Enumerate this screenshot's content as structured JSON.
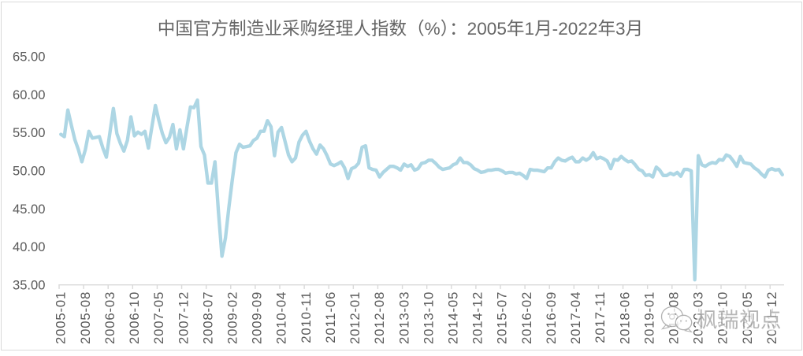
{
  "title": "中国官方制造业采购经理人指数（%）：2005年1月-2022年3月",
  "watermark": {
    "text": "枫瑞视点",
    "icon": "wechat-logo-icon"
  },
  "colors": {
    "line": "#ADD6E4",
    "axis": "#D9D9D9",
    "border": "#D9D9D9",
    "label_text": "#595959",
    "title_text": "#666666",
    "watermark_stroke": "#A6A6A6",
    "background": "#FFFFFF"
  },
  "chart_data": {
    "type": "line",
    "title": "中国官方制造业采购经理人指数（%）：2005年1月-2022年3月",
    "xlabel": "",
    "ylabel": "",
    "ylim": [
      35,
      65
    ],
    "y_tick_step": 5,
    "y_tick_labels": [
      "35.00",
      "40.00",
      "45.00",
      "50.00",
      "55.00",
      "60.00",
      "65.00"
    ],
    "x_first_month": "2005-01",
    "x_last_month": "2022-03",
    "x_tick_interval_months": 7,
    "x_tick_labels": [
      "2005-01",
      "2005-08",
      "2006-03",
      "2006-10",
      "2007-05",
      "2007-12",
      "2008-07",
      "2009-02",
      "2009-09",
      "2010-04",
      "2010-11",
      "2011-06",
      "2012-01",
      "2012-08",
      "2013-03",
      "2013-10",
      "2014-05",
      "2014-12",
      "2015-07",
      "2016-02",
      "2016-09",
      "2017-04",
      "2017-11",
      "2018-06",
      "2019-01",
      "2019-08",
      "2020-03",
      "2020-10",
      "2021-05",
      "2021-12"
    ],
    "grid": false,
    "legend": false,
    "series": [
      {
        "name": "中国官方制造业采购经理人指数（%）",
        "values": [
          54.8,
          54.5,
          58.0,
          56.0,
          54.1,
          52.8,
          51.2,
          52.8,
          55.2,
          54.3,
          54.4,
          54.5,
          53.0,
          51.8,
          55.0,
          58.2,
          54.9,
          53.6,
          52.6,
          54.0,
          57.1,
          54.6,
          55.1,
          54.8,
          55.2,
          53.0,
          55.8,
          58.6,
          56.6,
          54.9,
          53.7,
          54.4,
          56.1,
          52.9,
          55.4,
          52.9,
          55.7,
          58.4,
          58.3,
          59.3,
          53.2,
          52.1,
          48.4,
          48.4,
          51.2,
          44.6,
          38.8,
          41.2,
          45.3,
          49.0,
          52.4,
          53.5,
          53.1,
          53.2,
          53.3,
          54.0,
          54.3,
          55.2,
          55.2,
          56.6,
          55.8,
          52.0,
          55.1,
          55.7,
          53.9,
          52.1,
          51.2,
          51.7,
          53.8,
          54.7,
          55.2,
          53.9,
          52.9,
          52.2,
          53.4,
          52.9,
          52.0,
          50.9,
          50.7,
          50.9,
          51.2,
          50.4,
          49.0,
          50.3,
          50.5,
          51.0,
          53.1,
          53.3,
          50.4,
          50.2,
          50.1,
          49.2,
          49.8,
          50.2,
          50.6,
          50.6,
          50.4,
          50.1,
          50.9,
          50.6,
          50.8,
          50.1,
          50.3,
          51.0,
          51.1,
          51.4,
          51.4,
          51.0,
          50.5,
          50.2,
          50.3,
          50.4,
          50.8,
          51.0,
          51.7,
          51.1,
          51.1,
          50.8,
          50.3,
          50.1,
          49.8,
          49.9,
          50.1,
          50.1,
          50.2,
          50.2,
          50.0,
          49.7,
          49.8,
          49.8,
          49.6,
          49.7,
          49.4,
          49.0,
          50.2,
          50.1,
          50.1,
          50.0,
          49.9,
          50.4,
          50.4,
          51.2,
          51.7,
          51.4,
          51.3,
          51.6,
          51.8,
          51.2,
          51.2,
          51.7,
          51.4,
          51.7,
          52.4,
          51.6,
          51.8,
          51.6,
          51.3,
          50.3,
          51.5,
          51.4,
          51.9,
          51.5,
          51.2,
          51.3,
          50.8,
          50.2,
          50.0,
          49.4,
          49.5,
          49.2,
          50.5,
          50.1,
          49.4,
          49.4,
          49.7,
          49.5,
          49.8,
          49.3,
          50.2,
          50.2,
          50.0,
          35.7,
          52.0,
          50.8,
          50.6,
          50.9,
          51.1,
          51.0,
          51.5,
          51.4,
          52.1,
          51.9,
          51.3,
          50.6,
          51.9,
          51.1,
          51.0,
          50.9,
          50.4,
          50.1,
          49.6,
          49.2,
          50.1,
          50.3,
          50.1,
          50.2,
          49.5
        ]
      }
    ]
  }
}
